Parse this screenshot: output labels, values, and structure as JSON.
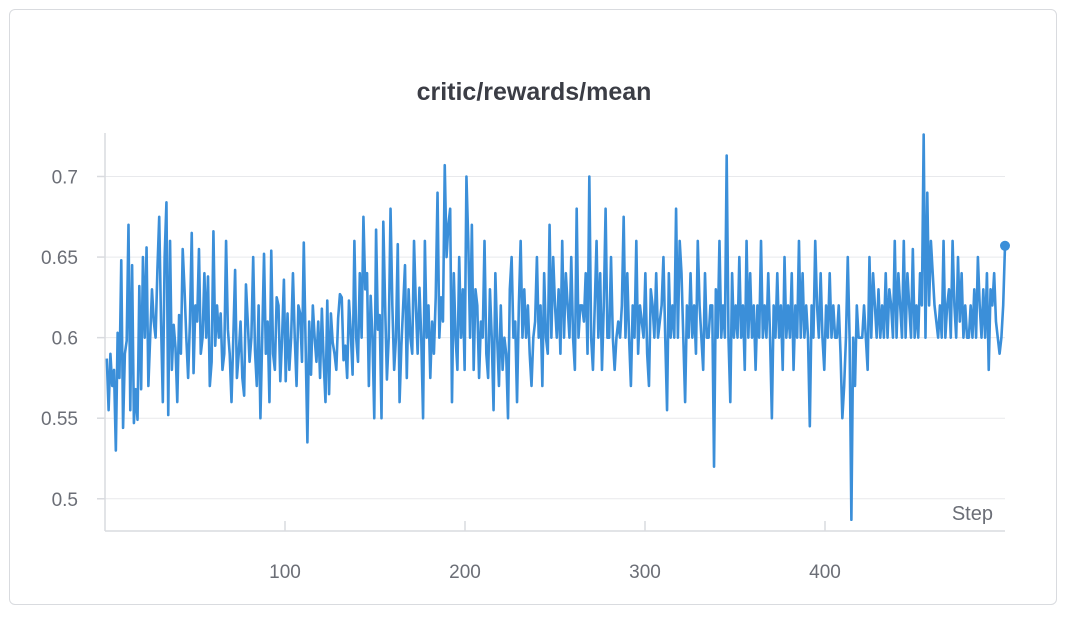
{
  "chart_data": {
    "type": "line",
    "title": "critic/rewards/mean",
    "xlabel": "Step",
    "ylabel": "",
    "xlim": [
      0,
      500
    ],
    "ylim": [
      0.48,
      0.727
    ],
    "x_ticks": [
      100,
      200,
      300,
      400
    ],
    "y_ticks": [
      0.5,
      0.55,
      0.6,
      0.65,
      0.7
    ],
    "y_tick_labels": [
      "0.5",
      "0.55",
      "0.6",
      "0.65",
      "0.7"
    ],
    "x_tick_labels": [
      "100",
      "200",
      "300",
      "400"
    ],
    "grid": true,
    "line_color": "#3b8fd9",
    "series": [
      {
        "values": [
          0.587,
          0.555,
          0.59,
          0.57,
          0.58,
          0.53,
          0.603,
          0.575,
          0.648,
          0.544,
          0.59,
          0.598,
          0.67,
          0.555,
          0.645,
          0.547,
          0.568,
          0.549,
          0.632,
          0.568,
          0.65,
          0.6,
          0.656,
          0.57,
          0.6,
          0.63,
          0.61,
          0.6,
          0.642,
          0.675,
          0.61,
          0.56,
          0.65,
          0.684,
          0.552,
          0.66,
          0.58,
          0.608,
          0.594,
          0.56,
          0.614,
          0.59,
          0.655,
          0.63,
          0.6,
          0.575,
          0.61,
          0.665,
          0.578,
          0.62,
          0.61,
          0.655,
          0.59,
          0.6,
          0.64,
          0.6,
          0.638,
          0.57,
          0.585,
          0.666,
          0.595,
          0.62,
          0.6,
          0.615,
          0.58,
          0.59,
          0.66,
          0.605,
          0.59,
          0.56,
          0.6,
          0.642,
          0.575,
          0.59,
          0.61,
          0.575,
          0.564,
          0.633,
          0.61,
          0.585,
          0.6,
          0.65,
          0.592,
          0.57,
          0.62,
          0.55,
          0.6,
          0.652,
          0.59,
          0.61,
          0.56,
          0.654,
          0.59,
          0.58,
          0.625,
          0.62,
          0.573,
          0.6,
          0.636,
          0.573,
          0.615,
          0.58,
          0.6,
          0.64,
          0.6,
          0.57,
          0.62,
          0.615,
          0.585,
          0.659,
          0.596,
          0.535,
          0.61,
          0.577,
          0.62,
          0.6,
          0.585,
          0.61,
          0.575,
          0.618,
          0.585,
          0.56,
          0.623,
          0.565,
          0.615,
          0.597,
          0.59,
          0.58,
          0.612,
          0.627,
          0.625,
          0.586,
          0.595,
          0.575,
          0.623,
          0.603,
          0.577,
          0.66,
          0.6,
          0.585,
          0.64,
          0.6,
          0.675,
          0.63,
          0.64,
          0.57,
          0.626,
          0.6,
          0.55,
          0.667,
          0.605,
          0.614,
          0.55,
          0.672,
          0.62,
          0.574,
          0.6,
          0.68,
          0.62,
          0.58,
          0.6,
          0.658,
          0.56,
          0.595,
          0.62,
          0.645,
          0.575,
          0.63,
          0.6,
          0.59,
          0.66,
          0.62,
          0.59,
          0.631,
          0.6,
          0.55,
          0.66,
          0.6,
          0.62,
          0.575,
          0.61,
          0.59,
          0.625,
          0.69,
          0.6,
          0.625,
          0.61,
          0.707,
          0.65,
          0.67,
          0.68,
          0.56,
          0.64,
          0.6,
          0.58,
          0.65,
          0.6,
          0.63,
          0.58,
          0.7,
          0.66,
          0.6,
          0.67,
          0.58,
          0.63,
          0.62,
          0.575,
          0.61,
          0.6,
          0.66,
          0.59,
          0.575,
          0.63,
          0.6,
          0.555,
          0.64,
          0.6,
          0.57,
          0.62,
          0.58,
          0.6,
          0.59,
          0.55,
          0.63,
          0.65,
          0.6,
          0.61,
          0.56,
          0.62,
          0.66,
          0.6,
          0.63,
          0.6,
          0.62,
          0.59,
          0.57,
          0.6,
          0.61,
          0.65,
          0.6,
          0.62,
          0.57,
          0.64,
          0.6,
          0.59,
          0.67,
          0.6,
          0.65,
          0.62,
          0.6,
          0.63,
          0.59,
          0.66,
          0.6,
          0.64,
          0.62,
          0.6,
          0.65,
          0.6,
          0.58,
          0.68,
          0.6,
          0.62,
          0.62,
          0.61,
          0.64,
          0.59,
          0.7,
          0.6,
          0.58,
          0.62,
          0.66,
          0.6,
          0.64,
          0.58,
          0.62,
          0.68,
          0.6,
          0.6,
          0.65,
          0.6,
          0.58,
          0.6,
          0.61,
          0.6,
          0.62,
          0.675,
          0.6,
          0.64,
          0.6,
          0.57,
          0.62,
          0.6,
          0.66,
          0.59,
          0.62,
          0.61,
          0.6,
          0.64,
          0.59,
          0.57,
          0.63,
          0.62,
          0.6,
          0.64,
          0.6,
          0.61,
          0.62,
          0.65,
          0.6,
          0.555,
          0.64,
          0.6,
          0.62,
          0.6,
          0.68,
          0.6,
          0.66,
          0.64,
          0.6,
          0.56,
          0.62,
          0.6,
          0.64,
          0.6,
          0.62,
          0.59,
          0.66,
          0.62,
          0.6,
          0.58,
          0.64,
          0.6,
          0.6,
          0.62,
          0.62,
          0.52,
          0.63,
          0.6,
          0.66,
          0.6,
          0.62,
          0.6,
          0.713,
          0.6,
          0.56,
          0.64,
          0.6,
          0.62,
          0.6,
          0.65,
          0.6,
          0.62,
          0.58,
          0.66,
          0.6,
          0.64,
          0.6,
          0.62,
          0.58,
          0.62,
          0.6,
          0.66,
          0.6,
          0.62,
          0.6,
          0.64,
          0.6,
          0.55,
          0.62,
          0.6,
          0.64,
          0.6,
          0.62,
          0.58,
          0.65,
          0.6,
          0.62,
          0.6,
          0.64,
          0.58,
          0.62,
          0.6,
          0.66,
          0.6,
          0.64,
          0.6,
          0.62,
          0.6,
          0.545,
          0.62,
          0.6,
          0.66,
          0.62,
          0.6,
          0.64,
          0.6,
          0.58,
          0.62,
          0.6,
          0.64,
          0.6,
          0.62,
          0.6,
          0.6,
          0.62,
          0.59,
          0.55,
          0.57,
          0.6,
          0.65,
          0.6,
          0.487,
          0.6,
          0.57,
          0.62,
          0.6,
          0.6,
          0.6,
          0.62,
          0.6,
          0.58,
          0.65,
          0.6,
          0.64,
          0.62,
          0.6,
          0.63,
          0.6,
          0.62,
          0.6,
          0.64,
          0.6,
          0.63,
          0.62,
          0.6,
          0.66,
          0.6,
          0.64,
          0.62,
          0.6,
          0.66,
          0.6,
          0.64,
          0.62,
          0.6,
          0.655,
          0.6,
          0.62,
          0.6,
          0.64,
          0.62,
          0.726,
          0.6,
          0.69,
          0.62,
          0.66,
          0.64,
          0.62,
          0.61,
          0.6,
          0.62,
          0.6,
          0.66,
          0.6,
          0.62,
          0.63,
          0.6,
          0.66,
          0.62,
          0.6,
          0.65,
          0.61,
          0.64,
          0.6,
          0.62,
          0.6,
          0.6,
          0.62,
          0.6,
          0.63,
          0.6,
          0.65,
          0.62,
          0.6,
          0.63,
          0.6,
          0.64,
          0.58,
          0.63,
          0.62,
          0.64,
          0.61,
          0.6,
          0.59,
          0.6,
          0.62,
          0.657
        ]
      }
    ]
  }
}
